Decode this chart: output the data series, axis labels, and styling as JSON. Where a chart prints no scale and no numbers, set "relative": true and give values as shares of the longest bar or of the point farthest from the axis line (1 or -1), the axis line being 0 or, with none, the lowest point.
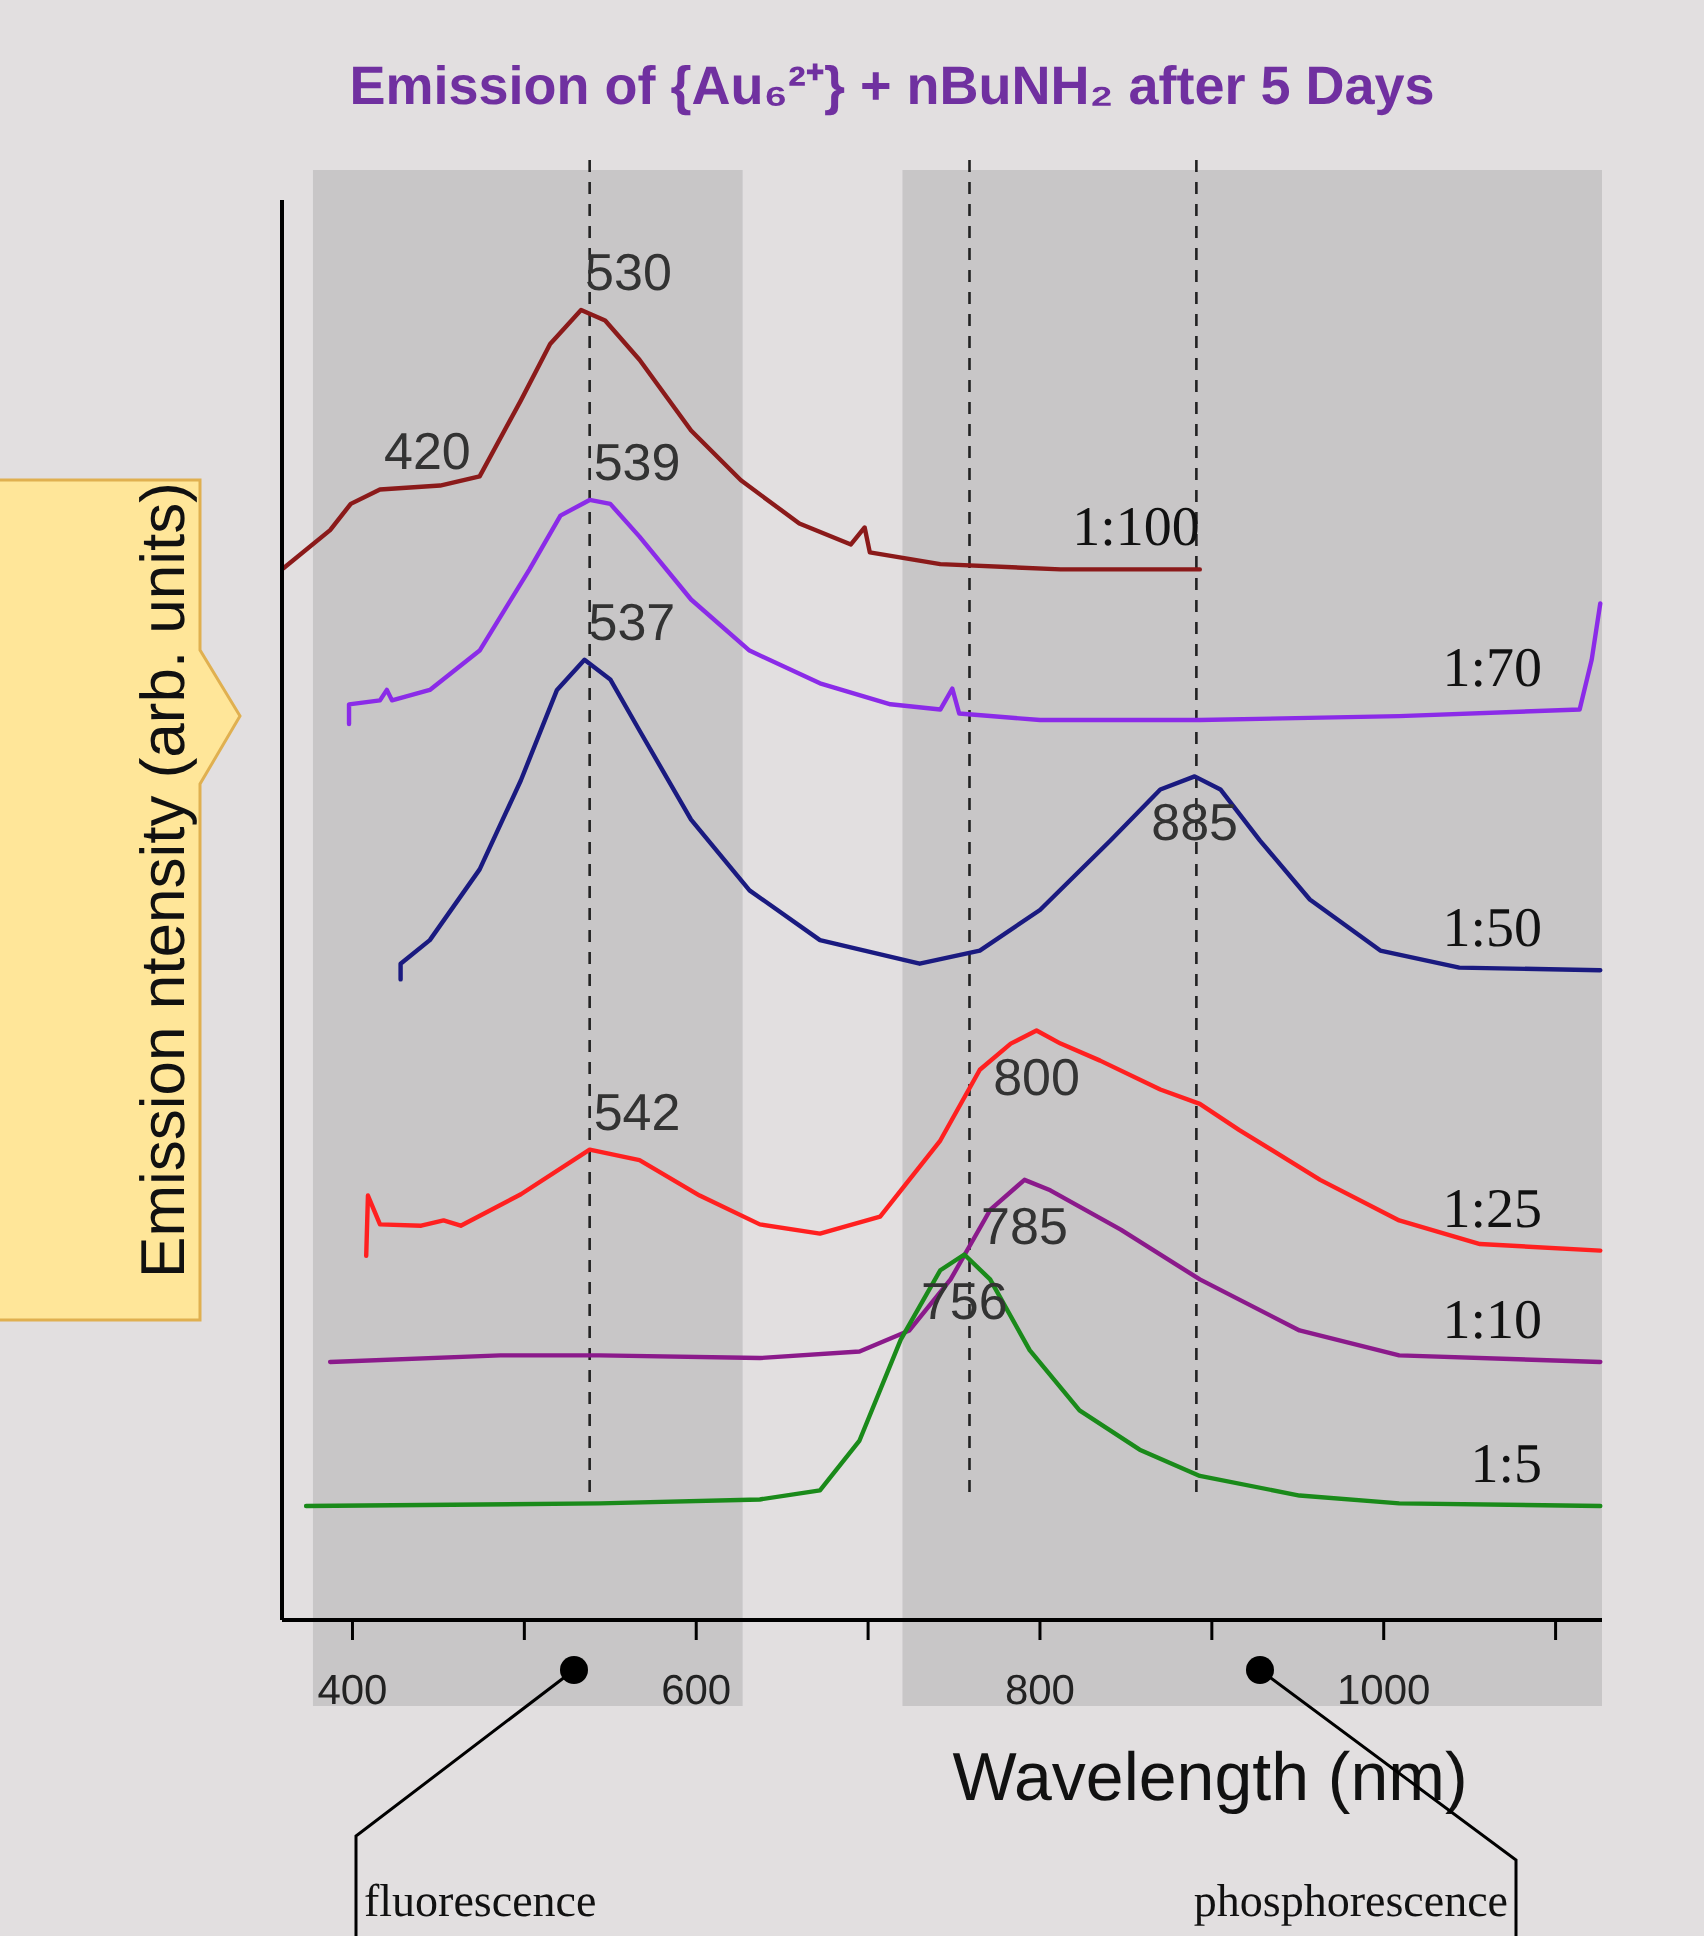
{
  "chart_data": {
    "type": "line",
    "title": "Emission of {Au₆²⁺} + nBuNH₂ after 5 Days",
    "xlabel": "Wavelength (nm)",
    "ylabel": "Emission ntensity (arb. units)",
    "relative": true,
    "xlim": [
      359,
      1127
    ],
    "xticks": [
      400,
      {
        "value": 500,
        "label": null
      },
      600,
      {
        "value": 700,
        "label": null
      },
      800,
      {
        "value": 900,
        "label": null
      },
      1000,
      {
        "value": 1100,
        "label": null
      }
    ],
    "line_style": "solid",
    "series": [
      {
        "name": "1:100",
        "color": "#8b1a1a",
        "x": [
          360,
          387,
          399,
          416,
          451,
          474,
          498,
          515,
          533,
          547,
          567,
          597,
          626,
          660,
          690,
          698,
          701,
          742,
          812,
          893
        ],
        "values": [
          0.803,
          0.832,
          0.852,
          0.863,
          0.866,
          0.873,
          0.931,
          0.974,
          1.0,
          0.992,
          0.962,
          0.908,
          0.87,
          0.837,
          0.821,
          0.834,
          0.815,
          0.806,
          0.802,
          0.802
        ]
      },
      {
        "name": "1:70",
        "color": "#8b2be8",
        "x": [
          398,
          398,
          416,
          420,
          423,
          445,
          474,
          503,
          521,
          538,
          550,
          567,
          597,
          631,
          672,
          713,
          742,
          749,
          753,
          800,
          893,
          1009,
          1114,
          1121,
          1126
        ],
        "values": [
          0.684,
          0.699,
          0.702,
          0.71,
          0.702,
          0.71,
          0.74,
          0.802,
          0.843,
          0.855,
          0.852,
          0.827,
          0.779,
          0.74,
          0.715,
          0.699,
          0.695,
          0.711,
          0.692,
          0.687,
          0.687,
          0.69,
          0.695,
          0.733,
          0.776
        ]
      },
      {
        "name": "1:50",
        "color": "#1a1a80",
        "x": [
          428,
          428,
          445,
          474,
          498,
          519,
          535,
          550,
          567,
          597,
          631,
          672,
          730,
          765,
          800,
          841,
          870,
          890,
          905,
          928,
          957,
          998,
          1044,
          1126
        ],
        "values": [
          0.489,
          0.501,
          0.519,
          0.573,
          0.641,
          0.71,
          0.733,
          0.718,
          0.679,
          0.611,
          0.557,
          0.519,
          0.501,
          0.511,
          0.542,
          0.595,
          0.634,
          0.644,
          0.634,
          0.595,
          0.55,
          0.511,
          0.498,
          0.496
        ]
      },
      {
        "name": "1:25",
        "color": "#ff2020",
        "x": [
          408,
          409,
          416,
          440,
          453,
          463,
          498,
          538,
          567,
          602,
          637,
          672,
          707,
          742,
          765,
          783,
          798,
          812,
          835,
          870,
          893,
          916,
          963,
          1009,
          1056,
          1126
        ],
        "values": [
          0.278,
          0.324,
          0.302,
          0.301,
          0.305,
          0.301,
          0.325,
          0.359,
          0.351,
          0.324,
          0.302,
          0.295,
          0.308,
          0.366,
          0.42,
          0.44,
          0.45,
          0.44,
          0.427,
          0.405,
          0.394,
          0.374,
          0.336,
          0.305,
          0.287,
          0.282
        ]
      },
      {
        "name": "1:10",
        "color": "#8b1a8b",
        "x": [
          387,
          486,
          544,
          637,
          695,
          724,
          748,
          771,
          791,
          806,
          847,
          893,
          951,
          1009,
          1126
        ],
        "values": [
          0.197,
          0.202,
          0.202,
          0.2,
          0.205,
          0.221,
          0.26,
          0.313,
          0.336,
          0.328,
          0.298,
          0.26,
          0.221,
          0.202,
          0.197
        ]
      },
      {
        "name": "1:5",
        "color": "#1a8a1a",
        "x": [
          373,
          544,
          637,
          672,
          695,
          719,
          742,
          756,
          771,
          794,
          823,
          858,
          893,
          951,
          1009,
          1126
        ],
        "values": [
          0.087,
          0.089,
          0.092,
          0.099,
          0.137,
          0.214,
          0.267,
          0.279,
          0.26,
          0.206,
          0.16,
          0.13,
          0.11,
          0.095,
          0.089,
          0.087
        ]
      }
    ],
    "ref_lines": [
      {
        "axis": "x",
        "value": 538,
        "color": "#222222",
        "line_style": "dashed"
      },
      {
        "axis": "x",
        "value": 759,
        "color": "#222222",
        "line_style": "dashed"
      },
      {
        "axis": "x",
        "value": 891,
        "color": "#222222",
        "line_style": "dashed"
      }
    ],
    "bands": [
      {
        "axis": "x",
        "from": 377,
        "to": 627,
        "color": "#c8c6c7"
      },
      {
        "axis": "x",
        "from": 720,
        "to": 1127,
        "color": "#c8c6c7"
      }
    ],
    "annotations": [
      {
        "text": "530",
        "x": 533,
        "y": 1.0
      },
      {
        "text": "420",
        "x": 416,
        "y": 0.863
      },
      {
        "text": "539",
        "x": 538,
        "y": 0.855
      },
      {
        "text": "537",
        "x": 535,
        "y": 0.733
      },
      {
        "text": "885",
        "x": 890,
        "y": 0.644
      },
      {
        "text": "542",
        "x": 538,
        "y": 0.359
      },
      {
        "text": "800",
        "x": 798,
        "y": 0.45
      },
      {
        "text": "785",
        "x": 791,
        "y": 0.336
      },
      {
        "text": "756",
        "x": 756,
        "y": 0.279
      },
      "fluorescence",
      "phosphorescence"
    ]
  }
}
